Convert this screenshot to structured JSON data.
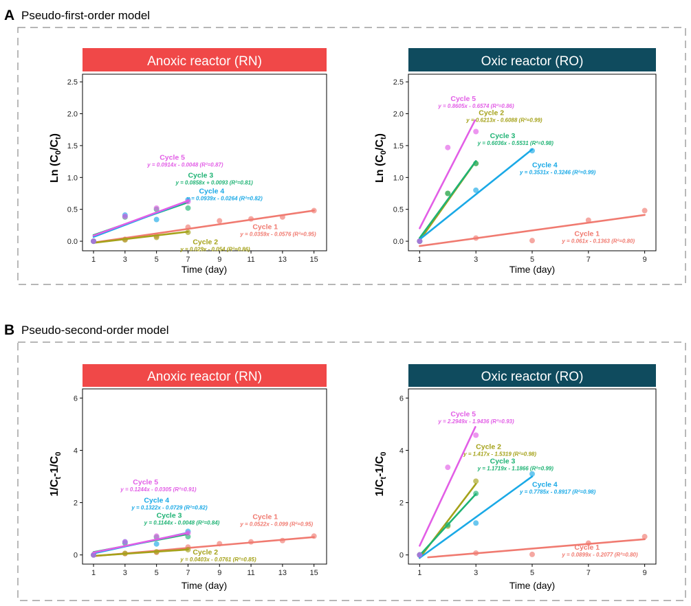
{
  "sections": [
    {
      "letter": "A",
      "title": "Pseudo-first-order model",
      "panels": [
        {
          "header": "Anoxic reactor (RN)",
          "header_color": "#f04848",
          "ylabel": "Ln (C0/Ct)",
          "xlabel": "Time (day)",
          "xlim": [
            0.3,
            15.8
          ],
          "ylim": [
            -0.15,
            2.62
          ],
          "xticks": [
            "1",
            "3",
            "5",
            "7",
            "9",
            "11",
            "13",
            "15"
          ],
          "xtick_values": [
            1,
            3,
            5,
            7,
            9,
            11,
            13,
            15
          ],
          "yticks": [
            "0.0",
            "0.5",
            "1.0",
            "1.5",
            "2.0",
            "2.5"
          ],
          "ytick_values": [
            0,
            0.5,
            1,
            1.5,
            2,
            2.5
          ]
        },
        {
          "header": "Oxic reactor (RO)",
          "header_color": "#0f4b5e",
          "ylabel": "Ln (C0/Ct)",
          "xlabel": "Time (day)",
          "xlim": [
            0.6,
            9.4
          ],
          "ylim": [
            -0.15,
            2.62
          ],
          "xticks": [
            "1",
            "3",
            "5",
            "7",
            "9"
          ],
          "xtick_values": [
            1,
            3,
            5,
            7,
            9
          ],
          "yticks": [
            "0.0",
            "0.5",
            "1.0",
            "1.5",
            "2.0",
            "2.5"
          ],
          "ytick_values": [
            0,
            0.5,
            1,
            1.5,
            2,
            2.5
          ]
        }
      ]
    },
    {
      "letter": "B",
      "title": "Pseudo-second-order model",
      "panels": [
        {
          "header": "Anoxic reactor (RN)",
          "header_color": "#f04848",
          "ylabel": "1/Ct-1/C0",
          "xlabel": "Time (day)",
          "xlim": [
            0.3,
            15.8
          ],
          "ylim": [
            -0.35,
            6.35
          ],
          "xticks": [
            "1",
            "3",
            "5",
            "7",
            "9",
            "11",
            "13",
            "15"
          ],
          "xtick_values": [
            1,
            3,
            5,
            7,
            9,
            11,
            13,
            15
          ],
          "yticks": [
            "0",
            "2",
            "4",
            "6"
          ],
          "ytick_values": [
            0,
            2,
            4,
            6
          ]
        },
        {
          "header": "Oxic reactor (RO)",
          "header_color": "#0f4b5e",
          "ylabel": "1/Ct-1/C0",
          "xlabel": "Time (day)",
          "xlim": [
            0.6,
            9.4
          ],
          "ylim": [
            -0.35,
            6.35
          ],
          "xticks": [
            "1",
            "3",
            "5",
            "7",
            "9"
          ],
          "xtick_values": [
            1,
            3,
            5,
            7,
            9
          ],
          "yticks": [
            "0",
            "2",
            "4",
            "6"
          ],
          "ytick_values": [
            0,
            2,
            4,
            6
          ]
        }
      ]
    }
  ],
  "series_colors": {
    "Cycle 1": "#f07a70",
    "Cycle 2": "#a5a21a",
    "Cycle 3": "#1fb374",
    "Cycle 4": "#1aa9e6",
    "Cycle 5": "#e25ee6"
  },
  "chart_data": [
    {
      "type": "scatter",
      "panel": "A-RN",
      "series": [
        {
          "name": "Cycle 1",
          "x": [
            1,
            3,
            5,
            7,
            9,
            11,
            13,
            15
          ],
          "y": [
            0.0,
            0.03,
            0.08,
            0.22,
            0.32,
            0.35,
            0.38,
            0.48
          ],
          "fit": [
            0.0359,
            -0.0576
          ],
          "fit_range": [
            1,
            15
          ],
          "equation": "y = 0.0359x - 0.0576 (R²=0.95)",
          "label_x": 11.1,
          "label_y": 0.19
        },
        {
          "name": "Cycle 2",
          "x": [
            1,
            3,
            5,
            7
          ],
          "y": [
            0.0,
            0.02,
            0.06,
            0.14
          ],
          "fit": [
            0.029,
            -0.054
          ],
          "fit_range": [
            1,
            7
          ],
          "equation": "y = 0.029x - 0.054 (R²=0.86)",
          "label_x": 7.3,
          "label_y": -0.05
        },
        {
          "name": "Cycle 3",
          "x": [
            1,
            3,
            5,
            7
          ],
          "y": [
            0.0,
            0.38,
            0.5,
            0.52
          ],
          "fit": [
            0.0858,
            0.0093
          ],
          "fit_range": [
            1,
            7
          ],
          "equation": "y = 0.0858x + 0.0093 (R²=0.81)",
          "label_x": 7.0,
          "label_y": 1.0
        },
        {
          "name": "Cycle 4",
          "x": [
            1,
            3,
            5,
            7
          ],
          "y": [
            0.0,
            0.41,
            0.34,
            0.65
          ],
          "fit": [
            0.0939,
            -0.0264
          ],
          "fit_range": [
            1,
            7
          ],
          "equation": "y = 0.0939x - 0.0264 (R²=0.82)",
          "label_x": 7.7,
          "label_y": 0.75
        },
        {
          "name": "Cycle 5",
          "x": [
            1,
            3,
            5,
            7
          ],
          "y": [
            0.0,
            0.39,
            0.52,
            0.62
          ],
          "fit": [
            0.0914,
            -0.0048
          ],
          "fit_range": [
            1,
            7
          ],
          "equation": "y = 0.0914x - 0.0048 (R²=0.87)",
          "label_x": 5.2,
          "label_y": 1.28
        }
      ]
    },
    {
      "type": "scatter",
      "panel": "A-RO",
      "series": [
        {
          "name": "Cycle 1",
          "x": [
            1,
            3,
            5,
            7,
            9
          ],
          "y": [
            0.0,
            0.05,
            0.01,
            0.33,
            0.48
          ],
          "fit": [
            0.061,
            -0.1363
          ],
          "fit_range": [
            1,
            9
          ],
          "equation": "y = 0.061x - 0.1363 (R²=0.80)",
          "label_x": 6.5,
          "label_y": 0.08
        },
        {
          "name": "Cycle 2",
          "x": [
            1,
            2,
            3
          ],
          "y": [
            0.0,
            0.75,
            1.22
          ],
          "fit": [
            0.6213,
            -0.6088
          ],
          "fit_range": [
            1,
            3
          ],
          "equation": "y = 0.6213x - 0.6088 (R²=0.99)",
          "label_x": 3.1,
          "label_y": 1.98
        },
        {
          "name": "Cycle 3",
          "x": [
            1,
            2,
            3
          ],
          "y": [
            0.0,
            0.75,
            1.22
          ],
          "fit": [
            0.6036,
            -0.5531
          ],
          "fit_range": [
            1,
            3
          ],
          "equation": "y = 0.6036x - 0.5531 (R²=0.98)",
          "label_x": 3.5,
          "label_y": 1.62
        },
        {
          "name": "Cycle 4",
          "x": [
            1,
            3,
            5
          ],
          "y": [
            0.0,
            0.8,
            1.42
          ],
          "fit": [
            0.3531,
            -0.3246
          ],
          "fit_range": [
            1,
            5
          ],
          "equation": "y = 0.3531x - 0.3246 (R²=0.99)",
          "label_x": 5.0,
          "label_y": 1.16
        },
        {
          "name": "Cycle 5",
          "x": [
            1,
            2,
            3
          ],
          "y": [
            0.0,
            1.47,
            1.72
          ],
          "fit": [
            0.8605,
            -0.6574
          ],
          "fit_range": [
            1.0,
            2.97
          ],
          "equation": "y = 0.8605x - 0.6574 (R²=0.86)",
          "label_x": 2.1,
          "label_y": 2.2
        }
      ]
    },
    {
      "type": "scatter",
      "panel": "B-RN",
      "series": [
        {
          "name": "Cycle 1",
          "x": [
            1,
            3,
            5,
            7,
            9,
            11,
            13,
            15
          ],
          "y": [
            0.0,
            0.05,
            0.1,
            0.3,
            0.43,
            0.5,
            0.55,
            0.72
          ],
          "fit": [
            0.0522,
            -0.099
          ],
          "fit_range": [
            1,
            15
          ],
          "equation": "y = 0.0522x - 0.099 (R²=0.95)",
          "label_x": 11.1,
          "label_y": 1.37
        },
        {
          "name": "Cycle 2",
          "x": [
            1,
            3,
            5,
            7
          ],
          "y": [
            0.0,
            0.06,
            0.12,
            0.2
          ],
          "fit": [
            0.0403,
            -0.0761
          ],
          "fit_range": [
            1,
            7
          ],
          "equation": "y = 0.0403x - 0.0761 (R²=0.85)",
          "label_x": 7.3,
          "label_y": 0.02
        },
        {
          "name": "Cycle 3",
          "x": [
            1,
            3,
            5,
            7
          ],
          "y": [
            0.0,
            0.45,
            0.68,
            0.7
          ],
          "fit": [
            0.1144,
            -0.0048
          ],
          "fit_range": [
            1,
            7
          ],
          "equation": "y = 0.1144x - 0.0048 (R²=0.84)",
          "label_x": 5.0,
          "label_y": 1.42
        },
        {
          "name": "Cycle 4",
          "x": [
            1,
            3,
            5,
            7
          ],
          "y": [
            0.0,
            0.5,
            0.42,
            0.9
          ],
          "fit": [
            0.1322,
            -0.0729
          ],
          "fit_range": [
            1,
            7
          ],
          "equation": "y = 0.1322x - 0.0729 (R²=0.82)",
          "label_x": 4.2,
          "label_y": 2.0
        },
        {
          "name": "Cycle 5",
          "x": [
            1,
            3,
            5,
            7
          ],
          "y": [
            0.0,
            0.5,
            0.72,
            0.84
          ],
          "fit": [
            0.1244,
            -0.0305
          ],
          "fit_range": [
            1,
            7
          ],
          "equation": "y = 0.1244x - 0.0305 (R²=0.91)",
          "label_x": 3.5,
          "label_y": 2.7
        }
      ]
    },
    {
      "type": "scatter",
      "panel": "B-RO",
      "series": [
        {
          "name": "Cycle 1",
          "x": [
            1,
            3,
            5,
            7,
            9
          ],
          "y": [
            0.0,
            0.07,
            0.02,
            0.45,
            0.7
          ],
          "fit": [
            0.0899,
            -0.2077
          ],
          "fit_range": [
            1.3,
            9
          ],
          "equation": "y = 0.0899x - 0.2077 (R²=0.80)",
          "label_x": 6.5,
          "label_y": 0.2
        },
        {
          "name": "Cycle 2",
          "x": [
            1,
            2,
            3
          ],
          "y": [
            0.0,
            1.1,
            2.82
          ],
          "fit": [
            1.417,
            -1.5319
          ],
          "fit_range": [
            1,
            3
          ],
          "equation": "y = 1.417x - 1.5319 (R²=0.98)",
          "label_x": 3.0,
          "label_y": 4.05
        },
        {
          "name": "Cycle 3",
          "x": [
            1,
            2,
            3
          ],
          "y": [
            0.0,
            1.15,
            2.35
          ],
          "fit": [
            1.1719,
            -1.1866
          ],
          "fit_range": [
            1,
            3
          ],
          "equation": "y = 1.1719x - 1.1866 (R²=0.99)",
          "label_x": 3.5,
          "label_y": 3.5
        },
        {
          "name": "Cycle 4",
          "x": [
            1,
            3,
            5
          ],
          "y": [
            0.0,
            1.22,
            3.1
          ],
          "fit": [
            0.7785,
            -0.8917
          ],
          "fit_range": [
            1,
            5
          ],
          "equation": "y = 0.7785x - 0.8917 (R²=0.98)",
          "label_x": 5.0,
          "label_y": 2.6
        },
        {
          "name": "Cycle 5",
          "x": [
            1,
            2,
            3
          ],
          "y": [
            0.0,
            3.35,
            4.58
          ],
          "fit": [
            2.2949,
            -1.9436
          ],
          "fit_range": [
            1.0,
            2.98
          ],
          "equation": "y = 2.2949x - 1.9436 (R²=0.93)",
          "label_x": 2.1,
          "label_y": 5.3
        }
      ]
    }
  ]
}
